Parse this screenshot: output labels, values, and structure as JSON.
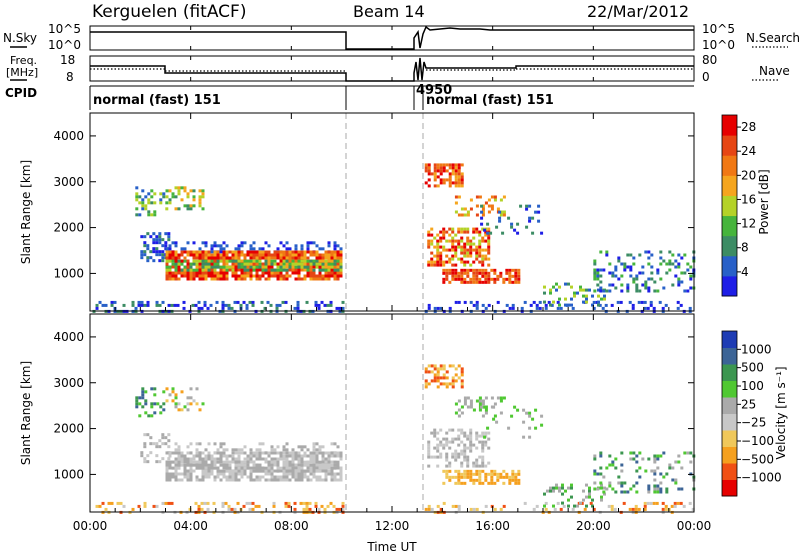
{
  "header": {
    "station": "Kerguelen  (fitACF)",
    "beam": "Beam 14",
    "date": "22/Mar/2012"
  },
  "left_labels": {
    "nsky": "N.Sky",
    "freq_line1": "Freq.",
    "freq_line2": "[MHz]",
    "cpid": "CPID"
  },
  "right_labels": {
    "nsearch": "N.Search",
    "nave": "Nave"
  },
  "noise_ticks": {
    "left_top": "10^5",
    "left_bottom": "10^0",
    "right_top": "10^5",
    "right_bottom": "10^0"
  },
  "freq_ticks": {
    "top": "18",
    "bottom": "8"
  },
  "nave_ticks": {
    "top": "80",
    "bottom": "0"
  },
  "cpid_segments": [
    {
      "label": "normal (fast) 151",
      "start_hour": 0.0,
      "end_hour": 10.0
    },
    {
      "label": "4950",
      "start_hour": 13.0,
      "end_hour": 13.2
    },
    {
      "label": "normal (fast) 151",
      "start_hour": 13.2,
      "end_hour": 24.0
    }
  ],
  "colors": {
    "power": [
      "#1e1ee6",
      "#2860c8",
      "#3c8c64",
      "#46b43c",
      "#b4d228",
      "#f5a51e",
      "#f07814",
      "#e64614",
      "#e60000"
    ],
    "velocity": [
      "#e60000",
      "#f05014",
      "#f5a01e",
      "#f0c85a",
      "#c8c8c8",
      "#aaaaaa",
      "#50c832",
      "#3c9650",
      "#3c6496",
      "#1e3cb4"
    ]
  },
  "chart_data": [
    {
      "type": "heatmap",
      "name": "power",
      "ylabel": "Slant Range [km]",
      "ylim": [
        180,
        4500
      ],
      "yticks": [
        1000,
        2000,
        3000,
        4000
      ],
      "xlim": [
        0,
        24
      ],
      "data_gap_hours": [
        10.0,
        13.2
      ],
      "colorbar": {
        "label": "Power [dB]",
        "ticks": [
          4,
          8,
          12,
          16,
          20,
          24,
          28
        ],
        "range": [
          0,
          30
        ]
      }
    },
    {
      "type": "heatmap",
      "name": "velocity",
      "ylabel": "Slant Range [km]",
      "ylim": [
        180,
        4500
      ],
      "yticks": [
        1000,
        2000,
        3000,
        4000
      ],
      "xlim": [
        0,
        24
      ],
      "data_gap_hours": [
        10.0,
        13.2
      ],
      "colorbar": {
        "label": "Velocity [m s⁻¹]",
        "ticks": [
          "1000",
          "500",
          "100",
          "25",
          "−25",
          "−100",
          "−500",
          "−1000"
        ]
      }
    }
  ],
  "xaxis": {
    "label": "Time UT",
    "ticks": [
      "00:00",
      "04:00",
      "08:00",
      "12:00",
      "16:00",
      "20:00",
      "00:00"
    ],
    "tick_hours": [
      0,
      4,
      8,
      12,
      16,
      20,
      24
    ]
  }
}
